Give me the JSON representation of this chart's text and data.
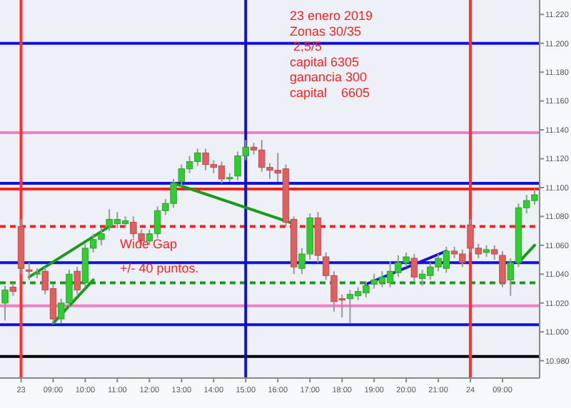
{
  "chart_data": {
    "type": "candlestick",
    "categories": [
      null,
      null,
      "23",
      null,
      null,
      null,
      "09:00",
      null,
      null,
      null,
      "10:00",
      null,
      null,
      null,
      "11:00",
      null,
      null,
      null,
      "12:00",
      null,
      null,
      null,
      "13:00",
      null,
      null,
      null,
      "14:00",
      null,
      null,
      null,
      "15:00",
      null,
      null,
      null,
      "16:00",
      null,
      null,
      null,
      "17:00",
      null,
      null,
      null,
      "18:00",
      null,
      null,
      null,
      "19:00",
      null,
      null,
      null,
      "20:00",
      null,
      null,
      null,
      "21:00",
      null,
      null,
      null,
      "24",
      null,
      null,
      null,
      "09:00",
      null,
      null,
      null,
      null
    ],
    "ohlc": [
      [
        11020,
        11032,
        11008,
        11029
      ],
      [
        11031,
        11034,
        11025,
        11028
      ],
      [
        11073,
        11078,
        11040,
        11044
      ],
      [
        11043,
        11048,
        11036,
        11042
      ],
      [
        11040,
        11044,
        11037,
        11041
      ],
      [
        11042,
        11045,
        11026,
        11029
      ],
      [
        11030,
        11033,
        11006,
        11009
      ],
      [
        11009,
        11023,
        11006,
        11020
      ],
      [
        11020,
        11043,
        11017,
        11040
      ],
      [
        11042,
        11045,
        11026,
        11029
      ],
      [
        11034,
        11061,
        11031,
        11058
      ],
      [
        11058,
        11068,
        11055,
        11064
      ],
      [
        11064,
        11072,
        11060,
        11068
      ],
      [
        11073,
        11085,
        11070,
        11078
      ],
      [
        11075,
        11083,
        11072,
        11078
      ],
      [
        11075,
        11080,
        11072,
        11077
      ],
      [
        11076,
        11080,
        11065,
        11068
      ],
      [
        11068,
        11071,
        11060,
        11063
      ],
      [
        11063,
        11071,
        11060,
        11068
      ],
      [
        11068,
        11087,
        11065,
        11084
      ],
      [
        11084,
        11092,
        11081,
        11089
      ],
      [
        11089,
        11106,
        11086,
        11103
      ],
      [
        11104,
        11116,
        11101,
        11113
      ],
      [
        11113,
        11122,
        11110,
        11118
      ],
      [
        11118,
        11127,
        11115,
        11124
      ],
      [
        11124,
        11127,
        11112,
        11116
      ],
      [
        11116,
        11119,
        11110,
        11114
      ],
      [
        11115,
        11118,
        11103,
        11106
      ],
      [
        11106,
        11110,
        11104,
        11107
      ],
      [
        11108,
        11125,
        11105,
        11122
      ],
      [
        11122,
        11133,
        11119,
        11128
      ],
      [
        11128,
        11131,
        11123,
        11126
      ],
      [
        11126,
        11133,
        11111,
        11114
      ],
      [
        11114,
        11117,
        11106,
        11112
      ],
      [
        11112,
        11124,
        11104,
        11110
      ],
      [
        11113,
        11116,
        11073,
        11076
      ],
      [
        11078,
        11080,
        11040,
        11045
      ],
      [
        11044,
        11058,
        11040,
        11054
      ],
      [
        11054,
        11082,
        11050,
        11079
      ],
      [
        11079,
        11083,
        11048,
        11053
      ],
      [
        11052,
        11055,
        11036,
        11039
      ],
      [
        11039,
        11042,
        11014,
        11021
      ],
      [
        11023,
        11026,
        11010,
        11022
      ],
      [
        11023,
        11029,
        11006,
        11026
      ],
      [
        11025,
        11031,
        11022,
        11028
      ],
      [
        11027,
        11035,
        11024,
        11032
      ],
      [
        11033,
        11040,
        11030,
        11036
      ],
      [
        11034,
        11042,
        11031,
        11038
      ],
      [
        11034,
        11049,
        11031,
        11042
      ],
      [
        11041,
        11053,
        11038,
        11048
      ],
      [
        11048,
        11055,
        11045,
        11052
      ],
      [
        11051,
        11054,
        11035,
        11038
      ],
      [
        11037,
        11043,
        11032,
        11040
      ],
      [
        11039,
        11048,
        11036,
        11045
      ],
      [
        11045,
        11054,
        11042,
        11051
      ],
      [
        11044,
        11059,
        11041,
        11056
      ],
      [
        11056,
        11059,
        11051,
        11054
      ],
      [
        11054,
        11057,
        11045,
        11048
      ],
      [
        11074,
        11078,
        11055,
        11058
      ],
      [
        11058,
        11061,
        11051,
        11054
      ],
      [
        11055,
        11060,
        11052,
        11057
      ],
      [
        11057,
        11060,
        11050,
        11054
      ],
      [
        11053,
        11056,
        11031,
        11034
      ],
      [
        11036,
        11051,
        11025,
        11048
      ],
      [
        11048,
        11089,
        11045,
        11086
      ],
      [
        11086,
        11095,
        11082,
        11091
      ],
      [
        11091,
        11099,
        11088,
        11095
      ]
    ],
    "series": [
      {
        "type": "line",
        "color": "#1a9a1a",
        "values": [
          null,
          null,
          null,
          11038,
          null,
          null,
          null,
          null,
          null,
          null,
          null,
          null,
          null,
          11073,
          null,
          null,
          null,
          null,
          null,
          null,
          null,
          null,
          null,
          null,
          null,
          null,
          null,
          null,
          null,
          null,
          null,
          null,
          null,
          null,
          null,
          null,
          null,
          null,
          null,
          null,
          null,
          null,
          null,
          null,
          null,
          null,
          null,
          null,
          null,
          null,
          null,
          null,
          null,
          null,
          null,
          null,
          null,
          null,
          null,
          null,
          null,
          null,
          null,
          null,
          null,
          null,
          null
        ]
      },
      {
        "type": "line",
        "color": "#1a9a1a",
        "values": [
          null,
          null,
          null,
          null,
          null,
          null,
          11006,
          null,
          null,
          null,
          null,
          11036,
          null,
          null,
          null,
          null,
          null,
          null,
          null,
          null,
          null,
          null,
          null,
          null,
          null,
          null,
          null,
          null,
          null,
          null,
          null,
          null,
          null,
          null,
          null,
          null,
          null,
          null,
          null,
          null,
          null,
          null,
          null,
          null,
          null,
          null,
          null,
          null,
          null,
          null,
          null,
          null,
          null,
          null,
          null,
          null,
          null,
          null,
          null,
          null,
          null,
          null,
          null,
          null,
          null,
          null,
          null
        ]
      },
      {
        "type": "line",
        "color": "#1a9a1a",
        "values": [
          null,
          null,
          null,
          null,
          null,
          null,
          null,
          null,
          null,
          null,
          null,
          null,
          null,
          null,
          null,
          null,
          null,
          null,
          null,
          null,
          null,
          11103,
          null,
          null,
          null,
          null,
          null,
          null,
          null,
          null,
          null,
          null,
          null,
          null,
          null,
          null,
          11075,
          null,
          null,
          null,
          null,
          null,
          null,
          null,
          null,
          null,
          null,
          null,
          null,
          null,
          null,
          null,
          null,
          null,
          null,
          null,
          null,
          null,
          null,
          null,
          null,
          null,
          null,
          null,
          null,
          null,
          null
        ]
      },
      {
        "type": "line",
        "color": "#1010e0",
        "values": [
          null,
          null,
          null,
          null,
          null,
          null,
          null,
          null,
          null,
          null,
          null,
          null,
          null,
          null,
          null,
          null,
          null,
          null,
          null,
          null,
          null,
          null,
          null,
          null,
          null,
          null,
          null,
          null,
          null,
          null,
          null,
          null,
          null,
          null,
          null,
          null,
          null,
          null,
          null,
          null,
          null,
          null,
          null,
          null,
          null,
          11033,
          null,
          null,
          null,
          null,
          null,
          null,
          null,
          null,
          null,
          11056,
          null,
          null,
          null,
          null,
          null,
          null,
          null,
          null,
          null,
          null,
          null
        ]
      },
      {
        "type": "line",
        "color": "#1a9a1a",
        "values": [
          null,
          null,
          null,
          null,
          null,
          null,
          null,
          null,
          null,
          null,
          null,
          null,
          null,
          null,
          null,
          null,
          null,
          null,
          null,
          null,
          null,
          null,
          null,
          null,
          null,
          null,
          null,
          null,
          null,
          null,
          null,
          null,
          null,
          null,
          null,
          null,
          null,
          null,
          null,
          null,
          null,
          null,
          null,
          null,
          null,
          null,
          null,
          null,
          null,
          null,
          null,
          null,
          null,
          null,
          null,
          null,
          null,
          null,
          null,
          null,
          null,
          null,
          null,
          null,
          11048,
          null,
          11060
        ]
      }
    ],
    "ylim": [
      10968,
      11230
    ],
    "yticks": [
      {
        "value": 10980,
        "label": "10.980"
      },
      {
        "value": 11000,
        "label": "11.000"
      },
      {
        "value": 11020,
        "label": "11.020"
      },
      {
        "value": 11040,
        "label": "11.040"
      },
      {
        "value": 11060,
        "label": "11.060"
      },
      {
        "value": 11080,
        "label": "11.080"
      },
      {
        "value": 11100,
        "label": "11.100"
      },
      {
        "value": 11120,
        "label": "11.120"
      },
      {
        "value": 11140,
        "label": "11.140"
      },
      {
        "value": 11160,
        "label": "11.160"
      },
      {
        "value": 11180,
        "label": "11.180"
      },
      {
        "value": 11200,
        "label": "11.200"
      },
      {
        "value": 11220,
        "label": "11.220"
      }
    ],
    "ref_lines": [
      {
        "axis": "y",
        "value": 11200,
        "color": "#1010e0"
      },
      {
        "axis": "y",
        "value": 11138,
        "color": "#f080c0"
      },
      {
        "axis": "y",
        "value": 11103,
        "color": "#1010e0"
      },
      {
        "axis": "y",
        "value": 11099,
        "color": "#ff2020"
      },
      {
        "axis": "y",
        "value": 11073,
        "color": "#ff2020",
        "line_style": "dashed"
      },
      {
        "axis": "y",
        "value": 11034,
        "color": "#1a9a1a",
        "line_style": "dashed"
      },
      {
        "axis": "y",
        "value": 11048,
        "color": "#1010e0"
      },
      {
        "axis": "y",
        "value": 11018,
        "color": "#f080c0"
      },
      {
        "axis": "y",
        "value": 11005,
        "color": "#1010e0"
      },
      {
        "axis": "y",
        "value": 10983,
        "color": "#000000"
      },
      {
        "axis": "x",
        "value": "23",
        "color": "#ff3030"
      },
      {
        "axis": "x",
        "value": "15:00",
        "color": "#1010c0"
      },
      {
        "axis": "x",
        "value": "24",
        "color": "#ff3030"
      }
    ],
    "annotations": [
      "23 enero 2019",
      "Zonas 30/35",
      " 2,5/5",
      "capital 6305",
      "ganancia 300",
      "capital    6605",
      "Wide Gap",
      "+/- 40 puntos."
    ],
    "grid": false
  }
}
